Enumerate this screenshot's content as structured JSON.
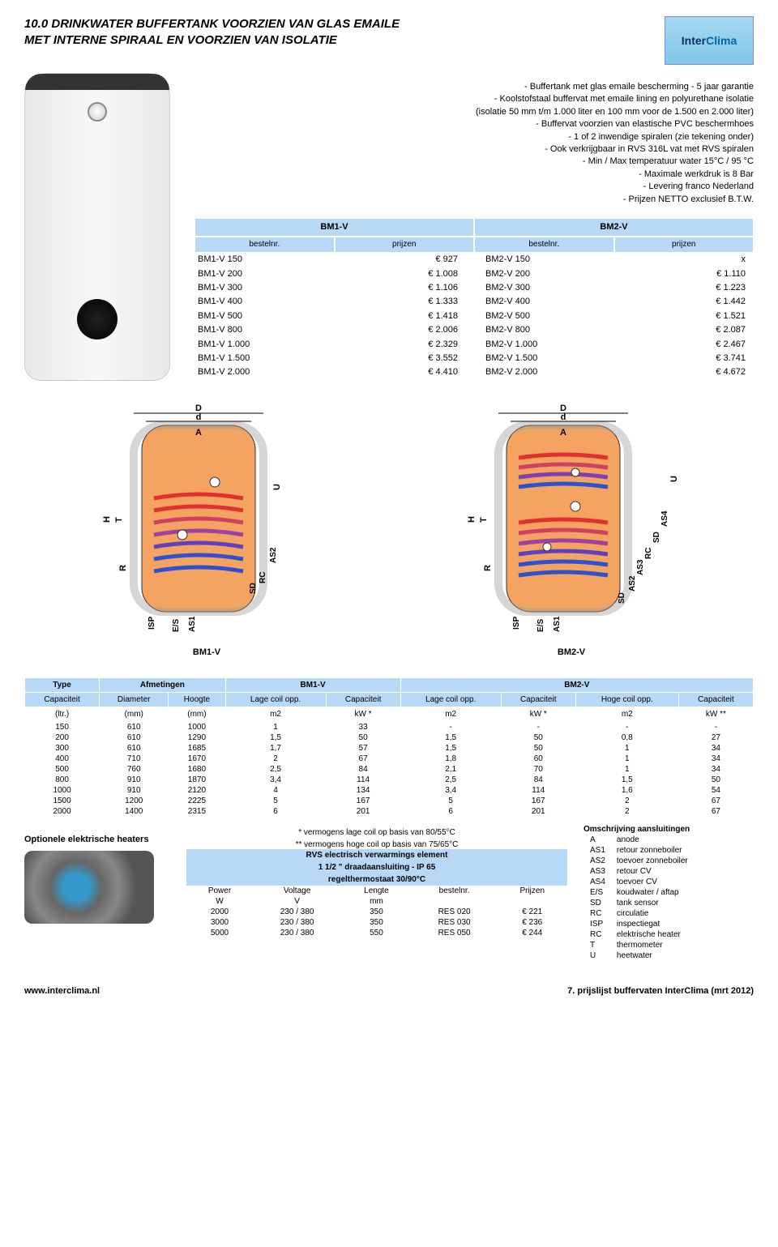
{
  "title_line1": "10.0 DRINKWATER BUFFERTANK VOORZIEN VAN GLAS EMAILE",
  "title_line2": "MET INTERNE SPIRAAL EN VOORZIEN VAN ISOLATIE",
  "logo": {
    "inter": "Inter",
    "clima": "Clima"
  },
  "description": [
    "- Buffertank met glas emaile bescherming - 5 jaar garantie",
    "- Koolstofstaal buffervat met emaile lining en polyurethane isolatie",
    "(isolatie 50 mm t/m 1.000 liter en 100 mm voor de 1.500 en 2.000 liter)",
    "- Buffervat voorzien van elastische PVC beschermhoes",
    "- 1 of 2 inwendige spiralen (zie tekening onder)",
    "- Ook verkrijgbaar in RVS 316L vat met RVS spiralen",
    "- Min / Max temperatuur water 15°C / 95 °C",
    "- Maximale werkdruk is 8 Bar",
    "- Levering franco Nederland",
    "- Prijzen NETTO exclusief B.T.W."
  ],
  "price": {
    "model1": "BM1-V",
    "model2": "BM2-V",
    "sub": [
      "bestelnr.",
      "prijzen",
      "bestelnr.",
      "prijzen"
    ],
    "rows": [
      [
        "BM1-V 150",
        "€        927",
        "BM2-V 150",
        "x"
      ],
      [
        "BM1-V 200",
        "€     1.008",
        "BM2-V 200",
        "€     1.110"
      ],
      [
        "BM1-V 300",
        "€     1.106",
        "BM2-V 300",
        "€     1.223"
      ],
      [
        "BM1-V 400",
        "€     1.333",
        "BM2-V 400",
        "€     1.442"
      ],
      [
        "BM1-V 500",
        "€     1.418",
        "BM2-V 500",
        "€     1.521"
      ],
      [
        "BM1-V 800",
        "€     2.006",
        "BM2-V 800",
        "€     2.087"
      ],
      [
        "BM1-V 1.000",
        "€     2.329",
        "BM2-V 1.000",
        "€     2.467"
      ],
      [
        "BM1-V 1.500",
        "€     3.552",
        "BM2-V 1.500",
        "€     3.741"
      ],
      [
        "BM1-V 2.000",
        "€     4.410",
        "BM2-V 2.000",
        "€     4.672"
      ]
    ]
  },
  "diagram_labels": {
    "bm1": "BM1-V",
    "bm2": "BM2-V"
  },
  "diagram_dims": {
    "D": "D",
    "d": "d",
    "A": "A",
    "H": "H",
    "T": "T",
    "R": "R",
    "U": "U",
    "ISP": "ISP",
    "ES": "E/S",
    "AS1": "AS1",
    "SD": "SD",
    "RC": "RC",
    "AS2": "AS2",
    "AS3": "AS3",
    "AS4": "AS4"
  },
  "spec": {
    "groups": [
      "Type",
      "Afmetingen",
      "BM1-V",
      "BM2-V"
    ],
    "headers": [
      "Capaciteit",
      "Diameter",
      "Hoogte",
      "Lage coil opp.",
      "Capaciteit",
      "Lage coil opp.",
      "Capaciteit",
      "Hoge coil opp.",
      "Capaciteit"
    ],
    "units": [
      "(ltr.)",
      "(mm)",
      "(mm)",
      "m2",
      "kW *",
      "m2",
      "kW *",
      "m2",
      "kW **"
    ],
    "rows": [
      [
        "150",
        "610",
        "1000",
        "1",
        "33",
        "-",
        "-",
        "-",
        "-"
      ],
      [
        "200",
        "610",
        "1290",
        "1,5",
        "50",
        "1,5",
        "50",
        "0,8",
        "27"
      ],
      [
        "300",
        "610",
        "1685",
        "1,7",
        "57",
        "1,5",
        "50",
        "1",
        "34"
      ],
      [
        "400",
        "710",
        "1670",
        "2",
        "67",
        "1,8",
        "60",
        "1",
        "34"
      ],
      [
        "500",
        "760",
        "1680",
        "2,5",
        "84",
        "2,1",
        "70",
        "1",
        "34"
      ],
      [
        "800",
        "910",
        "1870",
        "3,4",
        "114",
        "2,5",
        "84",
        "1,5",
        "50"
      ],
      [
        "1000",
        "910",
        "2120",
        "4",
        "134",
        "3,4",
        "114",
        "1,6",
        "54"
      ],
      [
        "1500",
        "1200",
        "2225",
        "5",
        "167",
        "5",
        "167",
        "2",
        "67"
      ],
      [
        "2000",
        "1400",
        "2315",
        "6",
        "201",
        "6",
        "201",
        "2",
        "67"
      ]
    ]
  },
  "notes": {
    "n1": "* vermogens lage coil op basis van 80/55°C",
    "n2": "** vermogens hoge coil op basis van 75/65°C"
  },
  "opt_heaters": "Optionele elektrische heaters",
  "heater": {
    "h1": "RVS electrisch verwarmings element",
    "h2": "1 1/2 \" draadaansluiting - IP 65",
    "h3": "regelthermostaat 30/90°C",
    "cols": [
      "Power",
      "Voltage",
      "Lengte",
      "bestelnr.",
      "Prijzen"
    ],
    "units": [
      "W",
      "V",
      "mm",
      "",
      ""
    ],
    "rows": [
      [
        "2000",
        "230 / 380",
        "350",
        "RES 020",
        "€        221"
      ],
      [
        "3000",
        "230 / 380",
        "350",
        "RES 030",
        "€        236"
      ],
      [
        "5000",
        "230 / 380",
        "550",
        "RES 050",
        "€        244"
      ]
    ]
  },
  "connections": {
    "title": "Omschrijving aansluitingen",
    "rows": [
      [
        "A",
        "anode"
      ],
      [
        "AS1",
        "retour zonneboiler"
      ],
      [
        "AS2",
        "toevoer zonneboiler"
      ],
      [
        "AS3",
        "retour CV"
      ],
      [
        "AS4",
        "toevoer CV"
      ],
      [
        "E/S",
        "koudwater / aftap"
      ],
      [
        "SD",
        "tank sensor"
      ],
      [
        "RC",
        "circulatie"
      ],
      [
        "ISP",
        "inspectiegat"
      ],
      [
        "RC",
        "elektrische heater"
      ],
      [
        "T",
        "thermometer"
      ],
      [
        "U",
        "heetwater"
      ]
    ]
  },
  "footer": {
    "left": "www.interclima.nl",
    "right": "7. prijslijst buffervaten InterClima (mrt 2012)"
  },
  "colors": {
    "header_bg": "#b8d8f8",
    "tank_fill": "#f4a460",
    "coil_red": "#e03030",
    "coil_blue": "#3050d0"
  }
}
